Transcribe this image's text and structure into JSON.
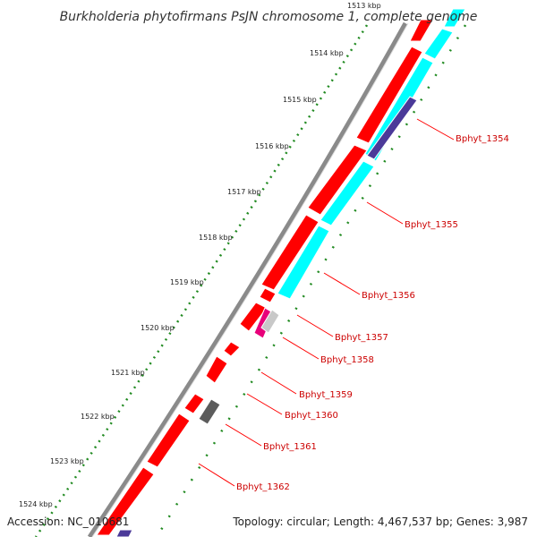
{
  "title": "Burkholderia phytofirmans PsJN chromosome 1, complete genome",
  "accession": "Accession: NC_010681",
  "summary": "Topology: circular; Length: 4,467,537 bp; Genes: 3,987",
  "kbp_ticks": [
    "1513 kbp",
    "1514 kbp",
    "1515 kbp",
    "1516 kbp",
    "1517 kbp",
    "1518 kbp",
    "1519 kbp",
    "1520 kbp",
    "1521 kbp",
    "1522 kbp",
    "1523 kbp",
    "1524 kbp"
  ],
  "genes": [
    "Bphyt_1354",
    "Bphyt_1355",
    "Bphyt_1356",
    "Bphyt_1357",
    "Bphyt_1358",
    "Bphyt_1359",
    "Bphyt_1360",
    "Bphyt_1361",
    "Bphyt_1362"
  ],
  "colors": {
    "cds": "#ff0000",
    "feature_cyan": "#00ffff",
    "feature_navy": "#4b3a99",
    "feature_magenta": "#e8007a",
    "feature_gray": "#5c5c5c",
    "feature_lightgray": "#c8c8c8",
    "gc_dots": "#228b22",
    "backbone": "#8a8a8a",
    "label": "#cc0000"
  }
}
